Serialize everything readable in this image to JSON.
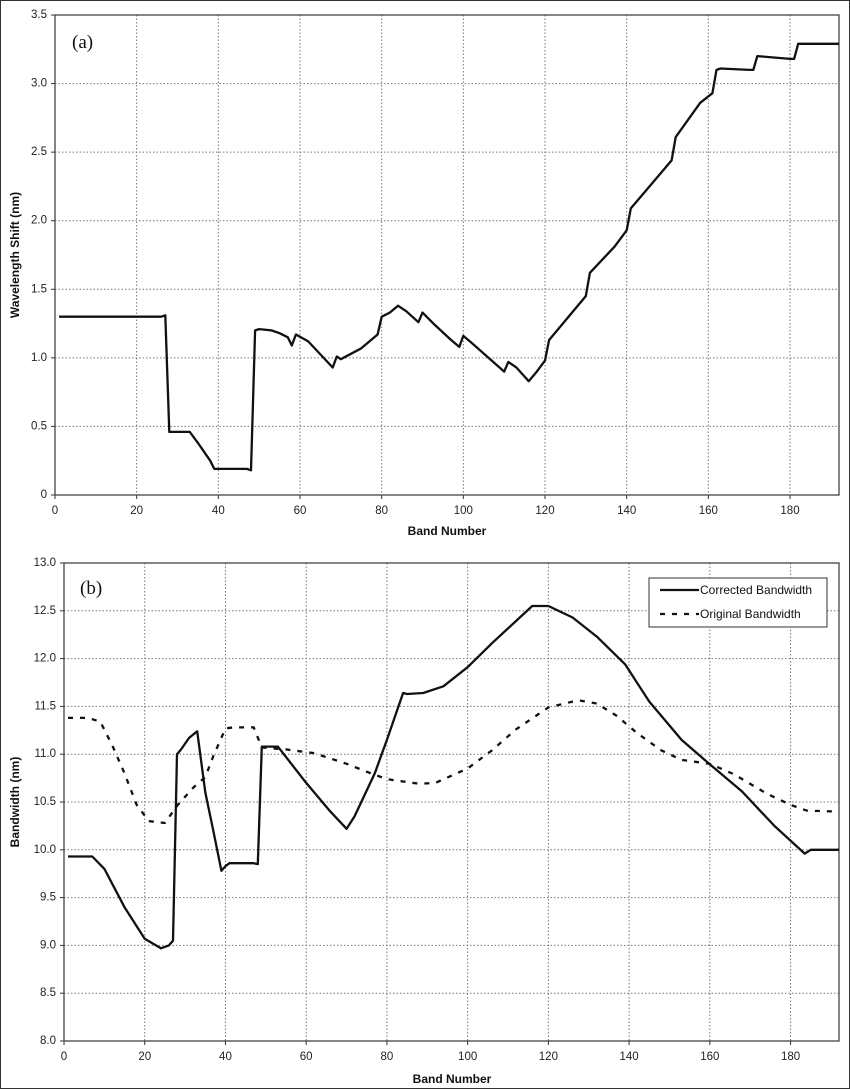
{
  "chart_data": [
    {
      "type": "line",
      "panel_label": "(a)",
      "xlabel": "Band Number",
      "ylabel": "Wavelength Shift (nm)",
      "xlim": [
        0,
        192
      ],
      "ylim": [
        0,
        3.5
      ],
      "xticks": [
        "0",
        "20",
        "40",
        "60",
        "80",
        "100",
        "120",
        "140",
        "160",
        "180"
      ],
      "yticks": [
        "0",
        "0.5",
        "1.0",
        "1.5",
        "2.0",
        "2.5",
        "3.0",
        "3.5"
      ],
      "grid": true,
      "series": [
        {
          "style": "solid",
          "color": "#111111",
          "points": [
            [
              1,
              1.3
            ],
            [
              26,
              1.3
            ],
            [
              27,
              1.31
            ],
            [
              28,
              0.46
            ],
            [
              29,
              0.46
            ],
            [
              33,
              0.46
            ],
            [
              35,
              0.38
            ],
            [
              38,
              0.25
            ],
            [
              39,
              0.19
            ],
            [
              47,
              0.19
            ],
            [
              48,
              0.18
            ],
            [
              49,
              1.2
            ],
            [
              50,
              1.21
            ],
            [
              53,
              1.2
            ],
            [
              55,
              1.18
            ],
            [
              57,
              1.15
            ],
            [
              58,
              1.09
            ],
            [
              59,
              1.17
            ],
            [
              62,
              1.12
            ],
            [
              68,
              0.93
            ],
            [
              69,
              1.01
            ],
            [
              70,
              0.99
            ],
            [
              75,
              1.07
            ],
            [
              79,
              1.17
            ],
            [
              80,
              1.3
            ],
            [
              82,
              1.33
            ],
            [
              84,
              1.38
            ],
            [
              86,
              1.34
            ],
            [
              89,
              1.26
            ],
            [
              90,
              1.33
            ],
            [
              93,
              1.24
            ],
            [
              97,
              1.13
            ],
            [
              99,
              1.08
            ],
            [
              100,
              1.16
            ],
            [
              102,
              1.11
            ],
            [
              110,
              0.9
            ],
            [
              111,
              0.97
            ],
            [
              113,
              0.93
            ],
            [
              116,
              0.83
            ],
            [
              118,
              0.9
            ],
            [
              120,
              0.98
            ],
            [
              121,
              1.13
            ],
            [
              130,
              1.45
            ],
            [
              131,
              1.62
            ],
            [
              137,
              1.81
            ],
            [
              140,
              1.93
            ],
            [
              141,
              2.09
            ],
            [
              145,
              2.23
            ],
            [
              151,
              2.44
            ],
            [
              152,
              2.61
            ],
            [
              158,
              2.86
            ],
            [
              161,
              2.93
            ],
            [
              162,
              3.1
            ],
            [
              163,
              3.11
            ],
            [
              170,
              3.1
            ],
            [
              171,
              3.1
            ],
            [
              172,
              3.2
            ],
            [
              180,
              3.18
            ],
            [
              181,
              3.18
            ],
            [
              182,
              3.29
            ],
            [
              192,
              3.29
            ]
          ]
        }
      ]
    },
    {
      "type": "line",
      "panel_label": "(b)",
      "xlabel": "Band Number",
      "ylabel": "Bandwidth (nm)",
      "xlim": [
        0,
        192
      ],
      "ylim": [
        8.0,
        13.0
      ],
      "xticks": [
        "0",
        "20",
        "40",
        "60",
        "80",
        "100",
        "120",
        "140",
        "160",
        "180"
      ],
      "yticks": [
        "8.0",
        "8.5",
        "9.0",
        "9.5",
        "10.0",
        "10.5",
        "11.0",
        "11.5",
        "12.0",
        "12.5",
        "13.0"
      ],
      "grid": true,
      "legend_position": "top-right",
      "series": [
        {
          "name": "Corrected Bandwidth",
          "style": "solid",
          "color": "#111111",
          "points": [
            [
              1,
              9.93
            ],
            [
              7,
              9.93
            ],
            [
              10,
              9.8
            ],
            [
              15,
              9.4
            ],
            [
              20,
              9.07
            ],
            [
              24,
              8.97
            ],
            [
              26,
              9.0
            ],
            [
              27,
              9.05
            ],
            [
              28,
              11.0
            ],
            [
              29,
              11.05
            ],
            [
              31,
              11.17
            ],
            [
              33,
              11.24
            ],
            [
              35,
              10.6
            ],
            [
              37,
              10.2
            ],
            [
              39,
              9.78
            ],
            [
              40,
              9.83
            ],
            [
              41,
              9.86
            ],
            [
              47,
              9.86
            ],
            [
              48,
              9.85
            ],
            [
              49,
              11.08
            ],
            [
              53,
              11.08
            ],
            [
              60,
              10.7
            ],
            [
              66,
              10.4
            ],
            [
              70,
              10.22
            ],
            [
              72,
              10.35
            ],
            [
              77,
              10.8
            ],
            [
              80,
              11.15
            ],
            [
              84,
              11.64
            ],
            [
              85,
              11.63
            ],
            [
              89,
              11.64
            ],
            [
              94,
              11.71
            ],
            [
              100,
              11.91
            ],
            [
              106,
              12.16
            ],
            [
              116,
              12.55
            ],
            [
              120,
              12.55
            ],
            [
              126,
              12.43
            ],
            [
              132,
              12.23
            ],
            [
              139,
              11.94
            ],
            [
              145,
              11.55
            ],
            [
              153,
              11.15
            ],
            [
              159,
              10.93
            ],
            [
              168,
              10.61
            ],
            [
              176,
              10.25
            ],
            [
              183.5,
              9.96
            ],
            [
              185,
              10.0
            ],
            [
              192,
              10.0
            ]
          ]
        },
        {
          "name": "Original Bandwidth",
          "style": "dashed",
          "color": "#111111",
          "points": [
            [
              1,
              11.38
            ],
            [
              6,
              11.38
            ],
            [
              9,
              11.34
            ],
            [
              12,
              11.09
            ],
            [
              15,
              10.8
            ],
            [
              18,
              10.47
            ],
            [
              21,
              10.3
            ],
            [
              25,
              10.28
            ],
            [
              28,
              10.46
            ],
            [
              32,
              10.65
            ],
            [
              35,
              10.76
            ],
            [
              37,
              10.98
            ],
            [
              40,
              11.27
            ],
            [
              42,
              11.28
            ],
            [
              47,
              11.28
            ],
            [
              49,
              11.07
            ],
            [
              55,
              11.05
            ],
            [
              62,
              11.01
            ],
            [
              70,
              10.9
            ],
            [
              76,
              10.8
            ],
            [
              80,
              10.74
            ],
            [
              88,
              10.69
            ],
            [
              92,
              10.7
            ],
            [
              100,
              10.85
            ],
            [
              106,
              11.04
            ],
            [
              112,
              11.26
            ],
            [
              120,
              11.49
            ],
            [
              126,
              11.55
            ],
            [
              128,
              11.56
            ],
            [
              132,
              11.53
            ],
            [
              137,
              11.4
            ],
            [
              142,
              11.22
            ],
            [
              148,
              11.04
            ],
            [
              153,
              10.94
            ],
            [
              160,
              10.9
            ],
            [
              166,
              10.79
            ],
            [
              174,
              10.59
            ],
            [
              180,
              10.47
            ],
            [
              184,
              10.41
            ],
            [
              192,
              10.4
            ]
          ]
        }
      ]
    }
  ]
}
